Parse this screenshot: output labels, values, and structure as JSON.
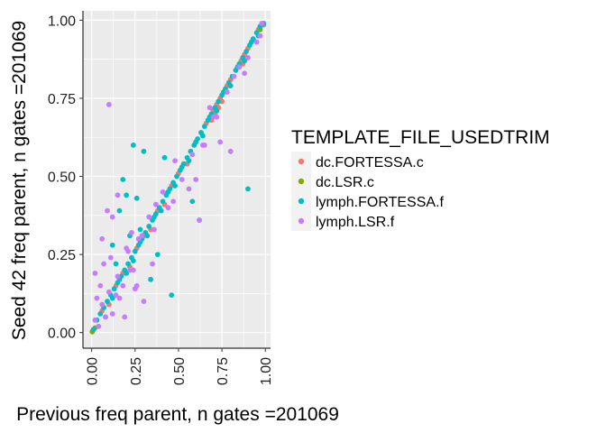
{
  "chart_data": {
    "type": "scatter",
    "title": "",
    "xlabel": "Previous freq parent, n gates =201069",
    "ylabel": "Seed 42 freq parent, n gates =201069",
    "xlim": [
      -0.05,
      1.03
    ],
    "ylim": [
      -0.05,
      1.03
    ],
    "x_ticks": [
      0,
      0.25,
      0.5,
      0.75,
      1
    ],
    "x_tick_labels": [
      "0.00",
      "0.25",
      "0.50",
      "0.75",
      "1.00"
    ],
    "y_ticks": [
      0,
      0.25,
      0.5,
      0.75,
      1
    ],
    "y_tick_labels": [
      "0.00",
      "0.25",
      "0.50",
      "0.75",
      "1.00"
    ],
    "grid": true,
    "panel_background": "#EBEBEB",
    "legend": {
      "title": "TEMPLATE_FILE_USEDTRIM",
      "placement": "right"
    },
    "series": [
      {
        "name": "dc.FORTESSA.c",
        "color": "#F8766D",
        "x": [
          0.003,
          0.06,
          0.1,
          0.14,
          0.18,
          0.22,
          0.26,
          0.3,
          0.34,
          0.38,
          0.42,
          0.46,
          0.5,
          0.55,
          0.6,
          0.63,
          0.66,
          0.68,
          0.7,
          0.72,
          0.73,
          0.74,
          0.76,
          0.78,
          0.8,
          0.83,
          0.86,
          0.88,
          0.9,
          0.93,
          0.96,
          0.99,
          0.71,
          0.69,
          0.75,
          0.87
        ],
        "y": [
          0.002,
          0.07,
          0.09,
          0.15,
          0.19,
          0.21,
          0.27,
          0.31,
          0.33,
          0.39,
          0.41,
          0.47,
          0.51,
          0.54,
          0.61,
          0.64,
          0.67,
          0.69,
          0.71,
          0.73,
          0.72,
          0.75,
          0.77,
          0.79,
          0.81,
          0.84,
          0.87,
          0.89,
          0.91,
          0.94,
          0.97,
          0.985,
          0.7,
          0.68,
          0.74,
          0.86
        ]
      },
      {
        "name": "dc.LSR.c",
        "color": "#7CAE00",
        "x": [
          0.005,
          0.02,
          0.97
        ],
        "y": [
          0.004,
          0.015,
          0.97
        ]
      },
      {
        "name": "lymph.FORTESSA.f",
        "color": "#00BFC4",
        "x": [
          0.01,
          0.03,
          0.05,
          0.07,
          0.09,
          0.11,
          0.13,
          0.15,
          0.17,
          0.19,
          0.21,
          0.23,
          0.25,
          0.27,
          0.29,
          0.31,
          0.33,
          0.35,
          0.37,
          0.39,
          0.41,
          0.43,
          0.45,
          0.47,
          0.49,
          0.51,
          0.53,
          0.55,
          0.57,
          0.59,
          0.61,
          0.63,
          0.65,
          0.67,
          0.69,
          0.71,
          0.73,
          0.75,
          0.77,
          0.79,
          0.81,
          0.83,
          0.85,
          0.87,
          0.89,
          0.91,
          0.93,
          0.95,
          0.97,
          0.99,
          0.08,
          0.12,
          0.16,
          0.2,
          0.24,
          0.28,
          0.32,
          0.36,
          0.4,
          0.44,
          0.48,
          0.52,
          0.56,
          0.6,
          0.64,
          0.68,
          0.72,
          0.76,
          0.8,
          0.84,
          0.88,
          0.92,
          0.96,
          0.3,
          0.22,
          0.18,
          0.26,
          0.38,
          0.42,
          0.34,
          0.14,
          0.46,
          0.58,
          0.62,
          0.12,
          0.24,
          0.2,
          0.9,
          0.16,
          0.28
        ],
        "y": [
          0.01,
          0.04,
          0.06,
          0.08,
          0.1,
          0.12,
          0.14,
          0.16,
          0.18,
          0.2,
          0.22,
          0.24,
          0.26,
          0.28,
          0.3,
          0.32,
          0.34,
          0.36,
          0.38,
          0.4,
          0.42,
          0.44,
          0.46,
          0.48,
          0.5,
          0.52,
          0.54,
          0.56,
          0.58,
          0.6,
          0.62,
          0.64,
          0.66,
          0.68,
          0.7,
          0.72,
          0.74,
          0.76,
          0.78,
          0.8,
          0.82,
          0.84,
          0.86,
          0.88,
          0.9,
          0.92,
          0.94,
          0.96,
          0.98,
          0.99,
          0.05,
          0.11,
          0.17,
          0.19,
          0.23,
          0.29,
          0.31,
          0.37,
          0.39,
          0.45,
          0.47,
          0.53,
          0.55,
          0.61,
          0.63,
          0.69,
          0.71,
          0.77,
          0.79,
          0.85,
          0.87,
          0.93,
          0.95,
          0.58,
          0.31,
          0.49,
          0.43,
          0.25,
          0.56,
          0.17,
          0.22,
          0.12,
          0.42,
          0.36,
          0.28,
          0.6,
          0.44,
          0.46,
          0.39,
          0.33
        ]
      },
      {
        "name": "lymph.LSR.f",
        "color": "#C77CFF",
        "x": [
          0.02,
          0.04,
          0.06,
          0.08,
          0.1,
          0.12,
          0.15,
          0.18,
          0.21,
          0.24,
          0.27,
          0.33,
          0.36,
          0.41,
          0.44,
          0.52,
          0.58,
          0.64,
          0.7,
          0.78,
          0.82,
          0.9,
          0.98,
          0.1,
          0.02,
          0.05,
          0.03,
          0.07,
          0.14,
          0.19,
          0.23,
          0.12,
          0.09,
          0.2,
          0.25,
          0.3,
          0.37,
          0.48,
          0.6,
          0.65,
          0.68,
          0.72,
          0.8,
          0.85,
          0.88,
          0.95,
          0.97,
          0.15,
          0.22,
          0.29,
          0.47,
          0.56,
          0.62,
          0.74,
          0.11,
          0.16,
          0.06,
          0.26,
          0.35
        ],
        "y": [
          0.04,
          0.02,
          0.09,
          0.05,
          0.13,
          0.06,
          0.18,
          0.15,
          0.26,
          0.2,
          0.3,
          0.37,
          0.33,
          0.45,
          0.4,
          0.49,
          0.57,
          0.6,
          0.69,
          0.77,
          0.82,
          0.88,
          0.99,
          0.73,
          0.19,
          0.15,
          0.11,
          0.22,
          0.12,
          0.05,
          0.32,
          0.37,
          0.39,
          0.27,
          0.14,
          0.1,
          0.41,
          0.55,
          0.49,
          0.6,
          0.72,
          0.69,
          0.58,
          0.85,
          0.83,
          0.93,
          0.95,
          0.44,
          0.2,
          0.31,
          0.42,
          0.46,
          0.36,
          0.61,
          0.24,
          0.11,
          0.3,
          0.15,
          0.22
        ]
      }
    ]
  }
}
